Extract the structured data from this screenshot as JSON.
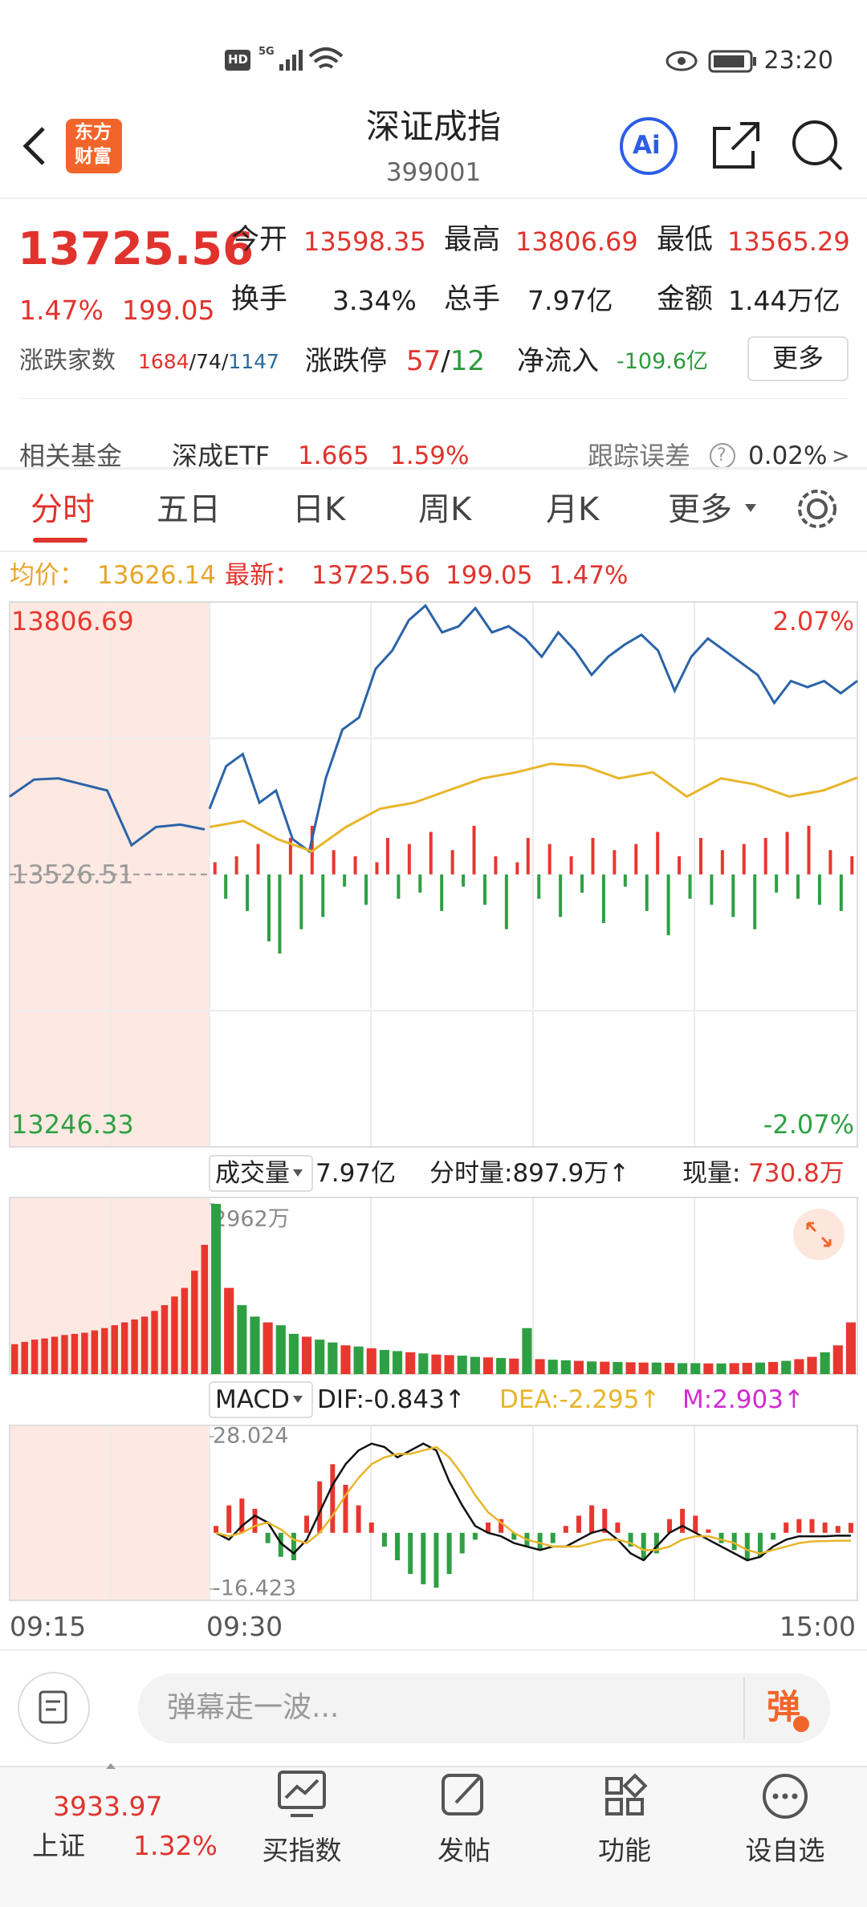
{
  "status_bar": {
    "hd": "HD",
    "network": "5G",
    "time": "23:20"
  },
  "header": {
    "logo_line1": "东方",
    "logo_line2": "财富",
    "title": "深证成指",
    "code": "399001",
    "ai": "Ai"
  },
  "quote": {
    "price": "13725.56",
    "change_pct": "1.47%",
    "change": "199.05",
    "open_label": "今开",
    "open": "13598.35",
    "high_label": "最高",
    "high": "13806.69",
    "low_label": "最低",
    "low": "13565.29",
    "turnover_label": "换手",
    "turnover": "3.34%",
    "volume_label": "总手",
    "volume": "7.97亿",
    "amount_label": "金额",
    "amount": "1.44万亿"
  },
  "breadth": {
    "label": "涨跌家数",
    "up": "1684",
    "separator": "/",
    "flat": "74",
    "down": "1147",
    "limit_label": "涨跌停",
    "limit_up": "57",
    "limit_down": "12",
    "inflow_label": "净流入",
    "inflow": "-109.6亿",
    "more": "更多"
  },
  "fund": {
    "label": "相关基金",
    "name": "深成ETF",
    "price": "1.665",
    "change": "1.59%",
    "tracking_label": "跟踪误差",
    "help": "?",
    "tracking": "0.02%",
    "arrow": ">"
  },
  "tabs": [
    "分时",
    "五日",
    "日K",
    "周K",
    "月K",
    "更多"
  ],
  "info": {
    "avg_label": "均价：",
    "avg": "13626.14",
    "last_label": "最新：",
    "last": "13725.56",
    "change": "199.05",
    "change_pct": "1.47%"
  },
  "colors": {
    "up": "#e8372f",
    "down": "#2ea043",
    "neutral": "#9a9a9a"
  },
  "intraday": {
    "type": "line",
    "ylim": [
      13246.33,
      13806.69
    ],
    "yticks": [
      13806.69,
      13526.51,
      13246.33
    ],
    "y2lim": [
      -2.07,
      2.07
    ],
    "y2ticks": [
      {
        "value": 2.07,
        "label": "2.07%"
      },
      {
        "value": -2.07,
        "label": "-2.07%"
      }
    ],
    "premarket": {
      "color": "#2b63a8",
      "values": [
        13606.56,
        13624.07,
        13625.32,
        13619.07,
        13612.82,
        13556.53,
        13575.29,
        13577.79,
        13572.79
      ]
    },
    "series": [
      {
        "color": "#2b63a8",
        "values": [
          13594.05,
          13637.83,
          13650.34,
          13600.31,
          13612.82,
          13562.78,
          13550.28,
          13625.32,
          13675.36,
          13687.86,
          13737.9,
          13756.66,
          13787.93,
          13802.94,
          13775.42,
          13781.67,
          13800.44,
          13775.42,
          13781.67,
          13769.17,
          13750.4,
          13775.42,
          13756.66,
          13731.64,
          13750.4,
          13762.91,
          13772.92,
          13756.66,
          13715.38,
          13750.4,
          13769.17,
          13756.66,
          13744.15,
          13731.64,
          13702.87,
          13725.39,
          13719.13,
          13725.39,
          13712.88,
          13725.56
        ]
      },
      {
        "color": "#e8b52a",
        "values": [
          13575.29,
          13581.55,
          13562.78,
          13550.28,
          13575.29,
          13594.05,
          13600.31,
          13612.82,
          13625.32,
          13631.58,
          13640.33,
          13637.83,
          13625.32,
          13631.58,
          13606.56,
          13625.32,
          13619.07,
          13606.56,
          13612.82,
          13626.14
        ]
      }
    ],
    "flow": {
      "ylim": [
        -224,
        224
      ],
      "values": [
        10,
        -20,
        15,
        -30,
        25,
        -55,
        -65,
        30,
        -45,
        40,
        -35,
        20,
        -10,
        15,
        -25,
        10,
        30,
        -20,
        25,
        -15,
        35,
        -30,
        20,
        -10,
        40,
        -25,
        15,
        -45,
        10,
        30,
        -20,
        25,
        -35,
        15,
        -15,
        30,
        -40,
        20,
        -10,
        25,
        -30,
        35,
        -50,
        15,
        -20,
        30,
        -25,
        20,
        -35,
        25,
        -45,
        30,
        -15,
        35,
        -20,
        40,
        -25,
        20,
        -30,
        15
      ]
    }
  },
  "volume_bar": {
    "label": "成交量",
    "total": "7.97亿",
    "minute": "分时量:897.9万↑",
    "current_label": "现量:",
    "current": "730.8万"
  },
  "volume": {
    "type": "bar",
    "ylim": [
      0,
      2962
    ],
    "yticks": [
      {
        "value": 2962,
        "label": "2962万"
      }
    ],
    "premarket": {
      "color": "#e8372f",
      "values": [
        520,
        560,
        600,
        620,
        650,
        680,
        700,
        720,
        760,
        800,
        850,
        900,
        950,
        1000,
        1100,
        1200,
        1350,
        1500,
        1800,
        2250
      ]
    },
    "values": [
      2962,
      1500,
      1200,
      1000,
      900,
      850,
      700,
      650,
      600,
      550,
      500,
      480,
      450,
      420,
      400,
      380,
      360,
      340,
      330,
      320,
      300,
      290,
      280,
      270,
      800,
      260,
      250,
      240,
      230,
      220,
      215,
      210,
      205,
      200,
      200,
      195,
      190,
      190,
      185,
      185,
      190,
      195,
      200,
      210,
      230,
      260,
      300,
      380,
      500,
      900
    ],
    "bar_colors": [
      "#2ea043",
      "#e8372f",
      "#2ea043",
      "#2ea043",
      "#e8372f",
      "#2ea043",
      "#2ea043",
      "#e8372f",
      "#2ea043",
      "#2ea043",
      "#e8372f",
      "#2ea043",
      "#e8372f",
      "#2ea043",
      "#2ea043",
      "#e8372f",
      "#2ea043",
      "#e8372f",
      "#e8372f",
      "#2ea043",
      "#2ea043",
      "#e8372f",
      "#2ea043",
      "#e8372f",
      "#2ea043",
      "#e8372f",
      "#2ea043",
      "#2ea043",
      "#e8372f",
      "#2ea043",
      "#e8372f",
      "#2ea043",
      "#e8372f",
      "#e8372f",
      "#2ea043",
      "#e8372f",
      "#2ea043",
      "#2ea043",
      "#e8372f",
      "#2ea043",
      "#e8372f",
      "#e8372f",
      "#2ea043",
      "#e8372f",
      "#2ea043",
      "#e8372f",
      "#e8372f",
      "#2ea043",
      "#e8372f",
      "#e8372f"
    ]
  },
  "macd_bar": {
    "label": "MACD",
    "dif": "DIF:-0.843↑",
    "dea": "DEA:-2.295↑",
    "m": "M:2.903↑"
  },
  "macd": {
    "type": "bar",
    "ylim": [
      -16.423,
      28.024
    ],
    "yticks": [
      28.024,
      -16.423
    ],
    "values": [
      2,
      8,
      10,
      7,
      -3,
      -7,
      -8,
      5,
      15,
      20,
      14,
      8,
      3,
      -4,
      -8,
      -12,
      -15,
      -16,
      -12,
      -6,
      -2,
      3,
      4,
      -2,
      -4,
      -5,
      -3,
      2,
      5,
      8,
      7,
      3,
      -4,
      -8,
      -6,
      4,
      7,
      5,
      1,
      -3,
      -5,
      -8,
      -7,
      -2,
      3,
      4,
      4,
      3,
      2,
      2.903
    ],
    "series": [
      {
        "color": "#111111",
        "values": [
          0,
          -2,
          2,
          5,
          3,
          -3,
          -6,
          -2,
          6,
          14,
          20,
          24,
          26,
          25,
          22,
          24,
          26,
          24,
          15,
          8,
          2,
          0,
          -1,
          -3,
          -4,
          -5,
          -4,
          -4,
          -2,
          0,
          1,
          -2,
          -6,
          -8,
          -4,
          0,
          2,
          0,
          -2,
          -4,
          -6,
          -8,
          -7,
          -4,
          -2,
          -1,
          -1,
          -1,
          -0.8,
          -0.843
        ]
      },
      {
        "color": "#e8b52a",
        "values": [
          0,
          -1,
          0,
          2,
          3,
          1,
          -2,
          -3,
          0,
          5,
          11,
          16,
          20,
          22,
          23,
          23,
          24,
          25,
          22,
          17,
          11,
          6,
          3,
          0,
          -2,
          -3,
          -4,
          -4,
          -4,
          -3,
          -2,
          -2,
          -3,
          -5,
          -5,
          -4,
          -2,
          -1,
          -1,
          -2,
          -3,
          -5,
          -6,
          -5,
          -4,
          -3,
          -2.5,
          -2.4,
          -2.3,
          -2.295
        ]
      }
    ]
  },
  "time_axis": [
    "09:15",
    "09:30",
    "15:00"
  ],
  "comment": {
    "placeholder": "弹幕走一波...",
    "button": "弹"
  },
  "bottom_nav": {
    "index_value": "3933.97",
    "index_name": "上证",
    "index_change": "1.32%",
    "items": [
      "买指数",
      "发帖",
      "功能",
      "设自选"
    ]
  }
}
